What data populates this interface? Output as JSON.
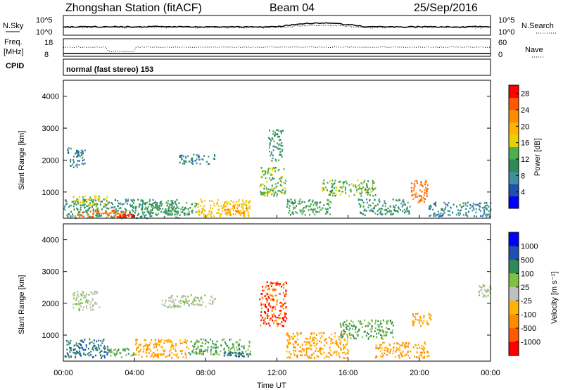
{
  "header": {
    "station": "Zhongshan Station (fitACF)",
    "beam": "Beam 04",
    "date": "25/Sep/2016"
  },
  "strip1": {
    "left_label": "N.Sky",
    "right_label": "N.Search",
    "left_ticks": [
      "10^5",
      "10^0"
    ],
    "right_ticks": [
      "10^5",
      "10^0"
    ]
  },
  "strip2": {
    "left_label_line1": "Freq.",
    "left_label_line2": "[MHz]",
    "right_label": "Nave",
    "left_ticks": [
      "18",
      "8"
    ],
    "right_ticks": [
      "60",
      "0"
    ]
  },
  "cpid": {
    "label": "CPID",
    "text": "normal (fast stereo) 153"
  },
  "colors": {
    "red": "#ff0000",
    "orange_red": "#ff5a00",
    "orange": "#ff8c00",
    "yellow_orange": "#ffb400",
    "yellow": "#e6d200",
    "light_green": "#7fc040",
    "green": "#4caf50",
    "dark_green": "#2e8b57",
    "teal": "#3f8fa0",
    "blue": "#2050b0",
    "deep_blue": "#0000ff",
    "gray": "#c0c0c0"
  },
  "chart_data": [
    {
      "type": "heatmap",
      "name": "power",
      "ylabel": "Slant Range [km]",
      "xlabel": "",
      "ylim": [
        180,
        4500
      ],
      "yticks": [
        "1000",
        "2000",
        "3000",
        "4000"
      ],
      "xticks": [
        "00:00",
        "04:00",
        "08:00",
        "12:00",
        "16:00",
        "20:00",
        "00:00"
      ],
      "colorbar_label": "Power [dB]",
      "colorbar_ticks": [
        "4",
        "8",
        "12",
        "16",
        "20",
        "24",
        "28"
      ],
      "colorbar_range": [
        0,
        30
      ],
      "regions": [
        {
          "x": [
            0.0,
            6.5
          ],
          "y": [
            200,
            800
          ],
          "value": 10
        },
        {
          "x": [
            0.5,
            3.5
          ],
          "y": [
            220,
            450
          ],
          "value": 24
        },
        {
          "x": [
            3.0,
            4.0
          ],
          "y": [
            230,
            330
          ],
          "value": 28
        },
        {
          "x": [
            0.5,
            2.5
          ],
          "y": [
            600,
            900
          ],
          "value": 16
        },
        {
          "x": [
            4.5,
            7.5
          ],
          "y": [
            300,
            700
          ],
          "value": 12
        },
        {
          "x": [
            7.5,
            10.5
          ],
          "y": [
            250,
            800
          ],
          "value": 18
        },
        {
          "x": [
            9.0,
            10.3
          ],
          "y": [
            300,
            600
          ],
          "value": 22
        },
        {
          "x": [
            11.0,
            12.5
          ],
          "y": [
            900,
            1800
          ],
          "value": 14
        },
        {
          "x": [
            11.5,
            12.3
          ],
          "y": [
            2000,
            3000
          ],
          "value": 10
        },
        {
          "x": [
            12.5,
            15.0
          ],
          "y": [
            300,
            800
          ],
          "value": 12
        },
        {
          "x": [
            14.5,
            17.5
          ],
          "y": [
            900,
            1400
          ],
          "value": 14
        },
        {
          "x": [
            16.5,
            19.5
          ],
          "y": [
            300,
            800
          ],
          "value": 10
        },
        {
          "x": [
            19.5,
            20.5
          ],
          "y": [
            700,
            1400
          ],
          "value": 24
        },
        {
          "x": [
            0.2,
            1.2
          ],
          "y": [
            1800,
            2400
          ],
          "value": 8
        },
        {
          "x": [
            6.5,
            8.5
          ],
          "y": [
            1900,
            2200
          ],
          "value": 8
        },
        {
          "x": [
            20.5,
            24.0
          ],
          "y": [
            250,
            700
          ],
          "value": 8
        }
      ]
    },
    {
      "type": "heatmap",
      "name": "velocity",
      "ylabel": "Slant Range [km]",
      "xlabel": "Time UT",
      "ylim": [
        180,
        4500
      ],
      "yticks": [
        "1000",
        "2000",
        "3000",
        "4000"
      ],
      "xticks": [
        "00:00",
        "04:00",
        "08:00",
        "12:00",
        "16:00",
        "20:00",
        "00:00"
      ],
      "colorbar_label": "Velocity [m s⁻¹]",
      "colorbar_ticks": [
        "1000",
        "500",
        "100",
        "25",
        "-25",
        "-100",
        "-500",
        "-1000"
      ],
      "regions": [
        {
          "x": [
            0.0,
            2.5
          ],
          "y": [
            300,
            900
          ],
          "value": 500
        },
        {
          "x": [
            2.5,
            4.0
          ],
          "y": [
            300,
            600
          ],
          "value": 100
        },
        {
          "x": [
            4.0,
            7.0
          ],
          "y": [
            300,
            900
          ],
          "value": -100
        },
        {
          "x": [
            7.0,
            10.5
          ],
          "y": [
            400,
            900
          ],
          "value": 100
        },
        {
          "x": [
            9.0,
            10.5
          ],
          "y": [
            350,
            500
          ],
          "value": 500
        },
        {
          "x": [
            11.0,
            12.5
          ],
          "y": [
            1300,
            2700
          ],
          "value": -500
        },
        {
          "x": [
            12.5,
            16.0
          ],
          "y": [
            300,
            1100
          ],
          "value": -100
        },
        {
          "x": [
            15.5,
            18.5
          ],
          "y": [
            900,
            1500
          ],
          "value": 100
        },
        {
          "x": [
            17.5,
            20.5
          ],
          "y": [
            300,
            800
          ],
          "value": -100
        },
        {
          "x": [
            19.5,
            20.7
          ],
          "y": [
            1300,
            1700
          ],
          "value": -100
        },
        {
          "x": [
            5.5,
            8.5
          ],
          "y": [
            1900,
            2300
          ],
          "value": 25
        },
        {
          "x": [
            0.5,
            2.0
          ],
          "y": [
            1800,
            2400
          ],
          "value": 25
        },
        {
          "x": [
            23.3,
            24.0
          ],
          "y": [
            2200,
            2600
          ],
          "value": 25
        }
      ]
    }
  ]
}
